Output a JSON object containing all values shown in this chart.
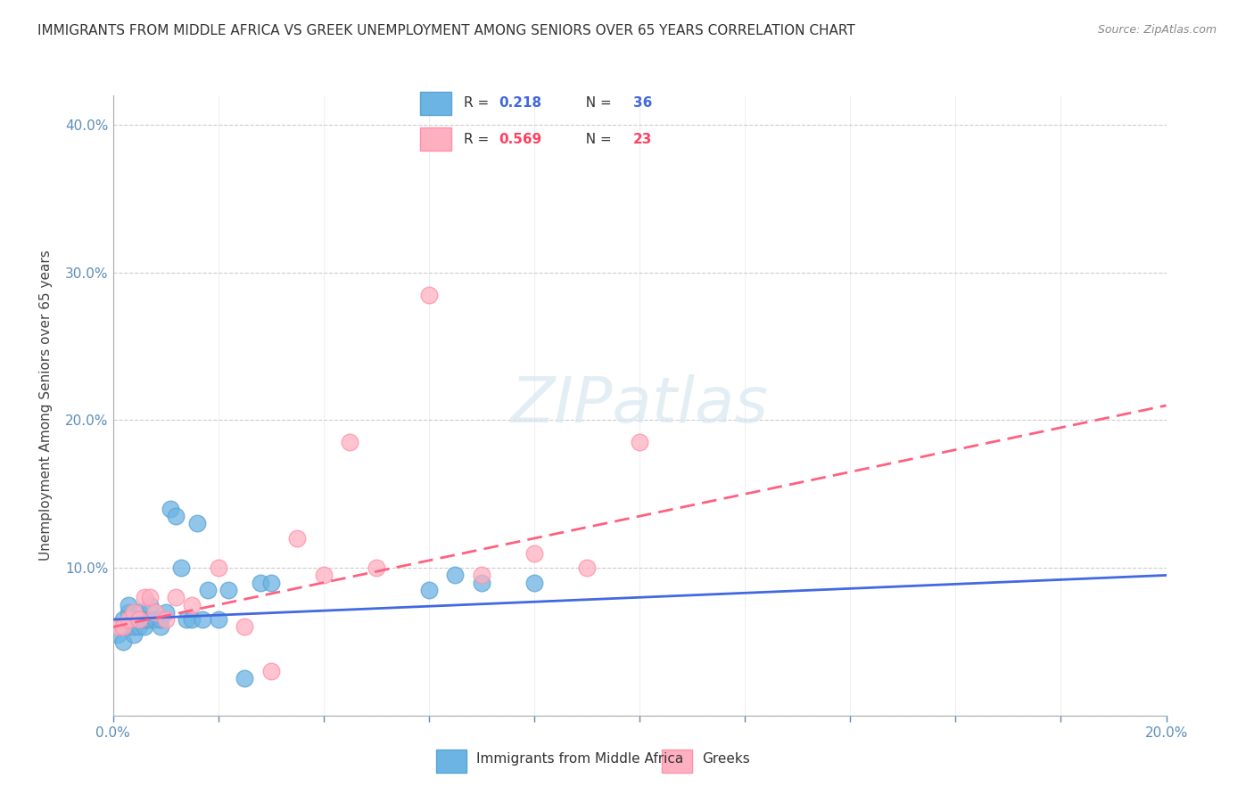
{
  "title": "IMMIGRANTS FROM MIDDLE AFRICA VS GREEK UNEMPLOYMENT AMONG SENIORS OVER 65 YEARS CORRELATION CHART",
  "source": "Source: ZipAtlas.com",
  "ylabel": "Unemployment Among Seniors over 65 years",
  "xlabel": "",
  "xlim": [
    0.0,
    0.2
  ],
  "ylim": [
    0.0,
    0.42
  ],
  "xticks": [
    0.0,
    0.02,
    0.04,
    0.06,
    0.08,
    0.1,
    0.12,
    0.14,
    0.16,
    0.18,
    0.2
  ],
  "yticks": [
    0.0,
    0.1,
    0.2,
    0.3,
    0.4
  ],
  "xtick_labels": [
    "0.0%",
    "",
    "",
    "",
    "",
    "",
    "",
    "",
    "",
    "",
    "20.0%"
  ],
  "ytick_labels": [
    "",
    "10.0%",
    "20.0%",
    "30.0%",
    "40.0%"
  ],
  "background_color": "#ffffff",
  "watermark": "ZIPatlas",
  "legend": [
    {
      "label": "R = 0.218   N = 36",
      "color": "#87CEEB"
    },
    {
      "label": "R = 0.569   N = 23",
      "color": "#FFB6C1"
    }
  ],
  "blue_scatter_x": [
    0.001,
    0.002,
    0.002,
    0.003,
    0.003,
    0.003,
    0.004,
    0.004,
    0.004,
    0.005,
    0.005,
    0.006,
    0.006,
    0.007,
    0.007,
    0.008,
    0.009,
    0.009,
    0.01,
    0.011,
    0.012,
    0.013,
    0.014,
    0.015,
    0.016,
    0.017,
    0.018,
    0.02,
    0.022,
    0.025,
    0.028,
    0.03,
    0.06,
    0.065,
    0.07,
    0.08
  ],
  "blue_scatter_y": [
    0.055,
    0.065,
    0.05,
    0.06,
    0.07,
    0.075,
    0.055,
    0.06,
    0.065,
    0.06,
    0.07,
    0.06,
    0.065,
    0.065,
    0.075,
    0.065,
    0.06,
    0.065,
    0.07,
    0.14,
    0.135,
    0.1,
    0.065,
    0.065,
    0.13,
    0.065,
    0.085,
    0.065,
    0.085,
    0.025,
    0.09,
    0.09,
    0.085,
    0.095,
    0.09,
    0.09
  ],
  "pink_scatter_x": [
    0.001,
    0.002,
    0.003,
    0.004,
    0.005,
    0.006,
    0.007,
    0.008,
    0.01,
    0.012,
    0.015,
    0.02,
    0.025,
    0.03,
    0.035,
    0.04,
    0.045,
    0.05,
    0.06,
    0.07,
    0.08,
    0.09,
    0.1
  ],
  "pink_scatter_y": [
    0.06,
    0.06,
    0.065,
    0.07,
    0.065,
    0.08,
    0.08,
    0.07,
    0.065,
    0.08,
    0.075,
    0.1,
    0.06,
    0.03,
    0.12,
    0.095,
    0.185,
    0.1,
    0.285,
    0.095,
    0.11,
    0.1,
    0.185
  ],
  "blue_line_x": [
    0.0,
    0.2
  ],
  "blue_line_y": [
    0.065,
    0.095
  ],
  "pink_line_x": [
    0.0,
    0.2
  ],
  "pink_line_y": [
    0.06,
    0.21
  ],
  "blue_scatter_color": "#6CB4E4",
  "blue_scatter_edge": "#5BA3D3",
  "pink_scatter_color": "#FFB0C0",
  "pink_scatter_edge": "#FF90A8",
  "blue_line_color": "#4169E1",
  "pink_line_color": "#FF6080",
  "grid_color": "#C0C0C0",
  "legend_R1_color": "#4169E1",
  "legend_N1_color": "#4169E1",
  "legend_R2_color": "#FF4060",
  "legend_N2_color": "#FF4060",
  "legend_R1": "0.218",
  "legend_N1": "36",
  "legend_R2": "0.569",
  "legend_N2": "23"
}
